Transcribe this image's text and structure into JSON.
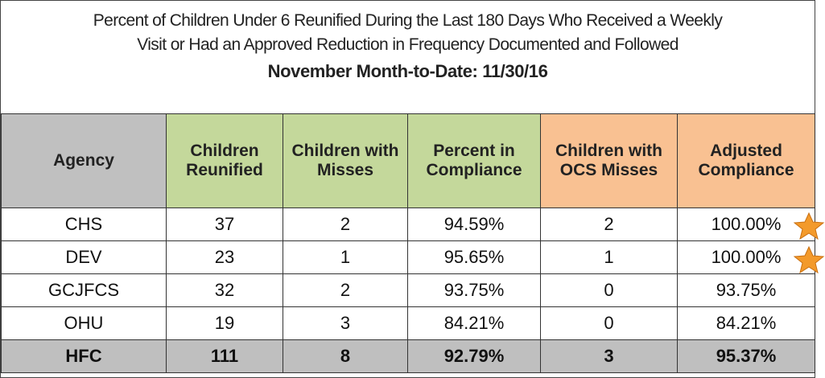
{
  "header": {
    "title_lines": [
      "Percent of Children Under 6 Reunified During the Last 180 Days Who Received a Weekly",
      "Visit or Had an Approved Reduction in Frequency Documented and Followed"
    ],
    "subtitle": "November Month-to-Date: 11/30/16"
  },
  "table": {
    "columns": [
      "Agency",
      "Children Reunified",
      "Children with Misses",
      "Percent in Compliance",
      "Children with OCS Misses",
      "Adjusted Compliance"
    ],
    "rows": [
      [
        "CHS",
        "37",
        "2",
        "94.59%",
        "2",
        "100.00%"
      ],
      [
        "DEV",
        "23",
        "1",
        "95.65%",
        "1",
        "100.00%"
      ],
      [
        "GCJFCS",
        "32",
        "2",
        "93.75%",
        "0",
        "93.75%"
      ],
      [
        "OHU",
        "19",
        "3",
        "84.21%",
        "0",
        "84.21%"
      ]
    ],
    "total": [
      "HFC",
      "111",
      "8",
      "92.79%",
      "3",
      "95.37%"
    ]
  }
}
